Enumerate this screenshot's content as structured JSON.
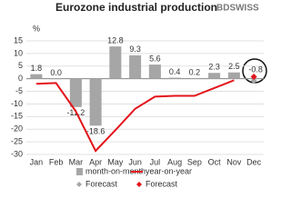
{
  "chart_data": {
    "type": "bar",
    "title": "Eurozone industrial production",
    "logo": "BDSWISS",
    "y_label": "%",
    "categories": [
      "Jan",
      "Feb",
      "Mar",
      "Apr",
      "May",
      "Jun",
      "Jul",
      "Aug",
      "Sep",
      "Oct",
      "Nov",
      "Dec"
    ],
    "ylim": [
      -30,
      15
    ],
    "yticks": [
      15,
      10,
      5,
      0,
      -5,
      -10,
      -15,
      -20,
      -25,
      -30
    ],
    "grid": true,
    "series": [
      {
        "name": "month-on-month",
        "type": "bar",
        "color": "#a6a6a6",
        "values": [
          1.8,
          0.0,
          -11.2,
          -18.6,
          12.8,
          9.3,
          5.6,
          0.4,
          0.2,
          2.3,
          2.5,
          null
        ],
        "value_labels": [
          "1.8",
          "0.0",
          "-11.2",
          "-18.6",
          "12.8",
          "9.3",
          "5.6",
          "0.4",
          "0.2",
          "2.3",
          "2.5",
          null
        ]
      },
      {
        "name": "year-on-year",
        "type": "line",
        "color": "#e3141b",
        "values": [
          -2.0,
          -1.7,
          -12.9,
          -28.6,
          -20.4,
          -11.9,
          -7.1,
          -6.8,
          -6.8,
          -3.7,
          -0.6,
          null
        ]
      },
      {
        "name": "Forecast",
        "type": "marker",
        "color": "#a6a6a6",
        "values": [
          null,
          null,
          null,
          null,
          null,
          null,
          null,
          null,
          null,
          null,
          null,
          -0.8
        ]
      },
      {
        "name": "Forecast",
        "type": "marker",
        "color": "#e3141b",
        "values": [
          null,
          null,
          null,
          null,
          null,
          null,
          null,
          null,
          null,
          null,
          null,
          0.8
        ]
      }
    ]
  }
}
